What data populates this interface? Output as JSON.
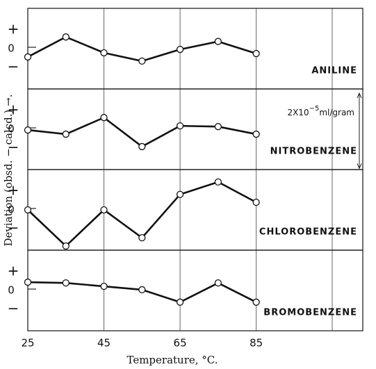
{
  "chart_data": {
    "type": "line",
    "xlabel": "Temperature, °C.",
    "ylabel": "Deviation (obsd. − calcd.) →.",
    "x": [
      25,
      35,
      45,
      55,
      65,
      75,
      85
    ],
    "xlim": [
      25,
      113
    ],
    "xticks": [
      25,
      45,
      65,
      85
    ],
    "ylim": [
      -1.07,
      1.07
    ],
    "yticks": [
      {
        "value": 0.5,
        "label": "+"
      },
      0,
      {
        "value": -0.5,
        "label": "−"
      }
    ],
    "color": "#111111",
    "grid": true,
    "scale_bar": {
      "base": "2X10",
      "exponent": "−5",
      "unit": "ml/gram",
      "length": 2
    },
    "series": [
      {
        "name": "ANILINE",
        "values": [
          -0.22,
          0.31,
          -0.11,
          -0.33,
          -0.02,
          0.19,
          -0.13
        ]
      },
      {
        "name": "NITROBENZENE",
        "values": [
          -0.02,
          -0.13,
          0.31,
          -0.46,
          0.09,
          0.07,
          -0.13
        ]
      },
      {
        "name": "CHLOROBENZENE",
        "values": [
          0,
          -0.96,
          0,
          -0.74,
          0.41,
          0.74,
          0.2
        ]
      },
      {
        "name": "BROMOBENZENE",
        "values": [
          0.22,
          0.2,
          0.11,
          0.02,
          -0.31,
          0.2,
          -0.31
        ]
      }
    ]
  }
}
